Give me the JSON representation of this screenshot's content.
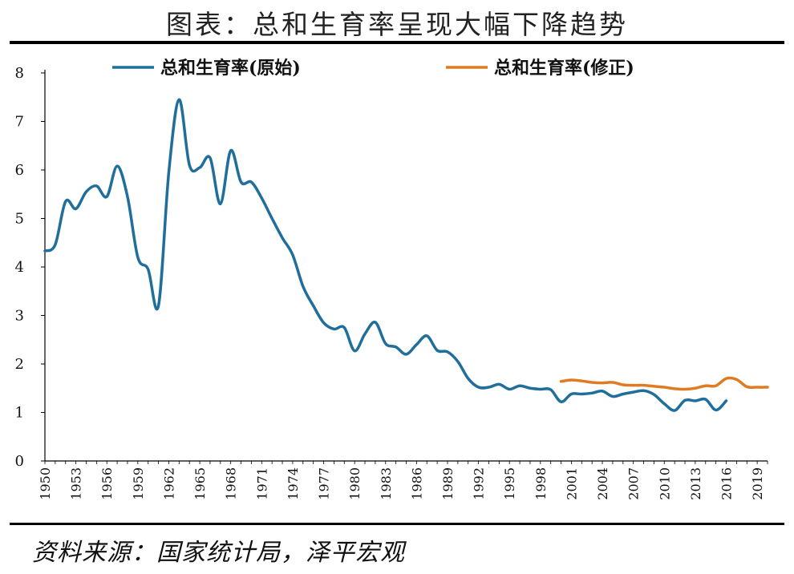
{
  "header": {
    "title": "图表：总和生育率呈现大幅下降趋势"
  },
  "footer": {
    "source": "资料来源：国家统计局，泽平宏观"
  },
  "colors": {
    "original": "#1F6E9C",
    "revised": "#E07B22",
    "axis": "#000000"
  },
  "chart_data": {
    "type": "line",
    "title": "图表：总和生育率呈现大幅下降趋势",
    "xlabel": "",
    "ylabel": "",
    "xlim": [
      1950,
      2020
    ],
    "ylim": [
      0,
      8
    ],
    "yticks": [
      "0",
      "1",
      "2",
      "3",
      "4",
      "5",
      "6",
      "7",
      "8"
    ],
    "xticks": [
      "1950",
      "1953",
      "1956",
      "1959",
      "1962",
      "1965",
      "1968",
      "1971",
      "1974",
      "1977",
      "1980",
      "1983",
      "1986",
      "1989",
      "1992",
      "1995",
      "1998",
      "2001",
      "2004",
      "2007",
      "2010",
      "2013",
      "2016",
      "2019"
    ],
    "legend_position": "top",
    "series": [
      {
        "name": "总和生育率(原始)",
        "x": [
          1950,
          1951,
          1952,
          1953,
          1954,
          1955,
          1956,
          1957,
          1958,
          1959,
          1960,
          1961,
          1962,
          1963,
          1964,
          1965,
          1966,
          1967,
          1968,
          1969,
          1970,
          1971,
          1972,
          1973,
          1974,
          1975,
          1976,
          1977,
          1978,
          1979,
          1980,
          1981,
          1982,
          1983,
          1984,
          1985,
          1986,
          1987,
          1988,
          1989,
          1990,
          1991,
          1992,
          1993,
          1994,
          1995,
          1996,
          1997,
          1998,
          1999,
          2000,
          2001,
          2002,
          2003,
          2004,
          2005,
          2006,
          2007,
          2008,
          2009,
          2010,
          2011,
          2012,
          2013,
          2014,
          2015,
          2016
        ],
        "values": [
          4.33,
          4.46,
          5.35,
          5.2,
          5.55,
          5.67,
          5.45,
          6.08,
          5.45,
          4.2,
          3.95,
          3.2,
          5.95,
          7.45,
          6.1,
          6.05,
          6.25,
          5.3,
          6.4,
          5.75,
          5.75,
          5.42,
          5.0,
          4.6,
          4.25,
          3.6,
          3.2,
          2.85,
          2.72,
          2.75,
          2.27,
          2.62,
          2.86,
          2.42,
          2.35,
          2.2,
          2.4,
          2.58,
          2.28,
          2.25,
          2.05,
          1.7,
          1.52,
          1.52,
          1.58,
          1.48,
          1.55,
          1.5,
          1.48,
          1.47,
          1.22,
          1.38,
          1.38,
          1.4,
          1.44,
          1.33,
          1.38,
          1.42,
          1.45,
          1.37,
          1.18,
          1.04,
          1.25,
          1.24,
          1.27,
          1.05,
          1.24
        ]
      },
      {
        "name": "总和生育率(修正)",
        "x": [
          2000,
          2001,
          2002,
          2003,
          2004,
          2005,
          2006,
          2007,
          2008,
          2009,
          2010,
          2011,
          2012,
          2013,
          2014,
          2015,
          2016,
          2017,
          2018,
          2019,
          2020
        ],
        "values": [
          1.64,
          1.67,
          1.65,
          1.62,
          1.61,
          1.62,
          1.57,
          1.56,
          1.56,
          1.54,
          1.52,
          1.49,
          1.48,
          1.5,
          1.55,
          1.55,
          1.7,
          1.68,
          1.53,
          1.52,
          1.52
        ]
      }
    ]
  }
}
